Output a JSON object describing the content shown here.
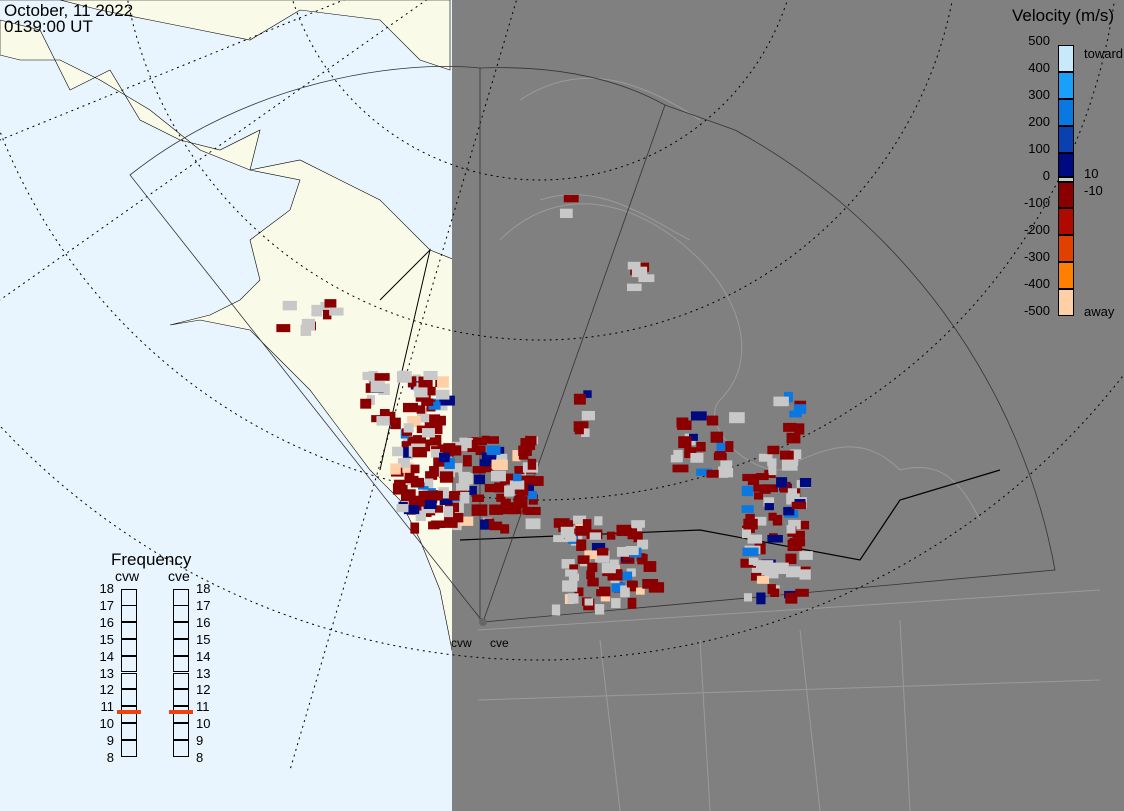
{
  "header": {
    "date": "October, 11 2022",
    "time": "0139:00 UT"
  },
  "colorbar": {
    "title": "Velocity (m/s)",
    "ticks": [
      "500",
      "400",
      "300",
      "200",
      "100",
      "0",
      "-100",
      "-200",
      "-300",
      "-400",
      "-500"
    ],
    "inner_labels": {
      "pos": "10",
      "neg": "-10"
    },
    "toward_label": "toward",
    "away_label": "away",
    "colors": [
      "#c8e8fc",
      "#1aa0f8",
      "#0a78e0",
      "#0a40b0",
      "#000a80",
      "#c8c8c8",
      "#8a0000",
      "#b00a00",
      "#e04000",
      "#ff8000",
      "#ffd0a8"
    ]
  },
  "frequency": {
    "title": "Frequency",
    "radars": [
      {
        "name": "cvw",
        "value_mhz": 10.7
      },
      {
        "name": "cve",
        "value_mhz": 10.7
      }
    ],
    "ticks": [
      "18",
      "17",
      "16",
      "15",
      "14",
      "13",
      "12",
      "11",
      "10",
      "9",
      "8"
    ],
    "marker_color": "#f04010"
  },
  "map": {
    "radar_labels": [
      "cvw",
      "cve"
    ],
    "ocean_color": "#e8f5fe",
    "land_color": "#fafae8",
    "night_color": "#808080",
    "ground_scatter_color": "#c8c8c8"
  }
}
